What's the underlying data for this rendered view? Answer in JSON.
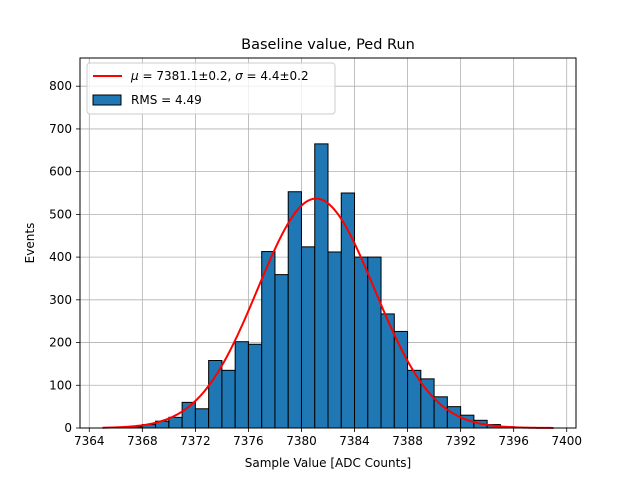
{
  "chart_data": {
    "type": "bar",
    "title": "Baseline value, Ped Run",
    "xlabel": "Sample Value [ADC Counts]",
    "ylabel": "Events",
    "xlim": [
      7363.3,
      7400.7
    ],
    "ylim": [
      0,
      866
    ],
    "xticks": [
      7364,
      7368,
      7372,
      7376,
      7380,
      7384,
      7388,
      7392,
      7396,
      7400
    ],
    "yticks": [
      0,
      100,
      200,
      300,
      400,
      500,
      600,
      700,
      800
    ],
    "grid": true,
    "legend_position": "upper-left",
    "histogram": {
      "name": "RMS = 4.49",
      "color": "#1f77b4",
      "edge_color": "#000000",
      "bin_width": 1,
      "bins": [
        {
          "x": 7364,
          "value": 0
        },
        {
          "x": 7365,
          "value": 0
        },
        {
          "x": 7366,
          "value": 0
        },
        {
          "x": 7367,
          "value": 3
        },
        {
          "x": 7368,
          "value": 8
        },
        {
          "x": 7369,
          "value": 16
        },
        {
          "x": 7370,
          "value": 25
        },
        {
          "x": 7371,
          "value": 60
        },
        {
          "x": 7372,
          "value": 45
        },
        {
          "x": 7373,
          "value": 158
        },
        {
          "x": 7374,
          "value": 135
        },
        {
          "x": 7375,
          "value": 202
        },
        {
          "x": 7376,
          "value": 196
        },
        {
          "x": 7377,
          "value": 413
        },
        {
          "x": 7378,
          "value": 359
        },
        {
          "x": 7379,
          "value": 553
        },
        {
          "x": 7380,
          "value": 424
        },
        {
          "x": 7381,
          "value": 665
        },
        {
          "x": 7382,
          "value": 412
        },
        {
          "x": 7383,
          "value": 550
        },
        {
          "x": 7384,
          "value": 400
        },
        {
          "x": 7385,
          "value": 400
        },
        {
          "x": 7386,
          "value": 267
        },
        {
          "x": 7387,
          "value": 226
        },
        {
          "x": 7388,
          "value": 135
        },
        {
          "x": 7389,
          "value": 115
        },
        {
          "x": 7390,
          "value": 73
        },
        {
          "x": 7391,
          "value": 50
        },
        {
          "x": 7392,
          "value": 30
        },
        {
          "x": 7393,
          "value": 18
        },
        {
          "x": 7394,
          "value": 8
        },
        {
          "x": 7395,
          "value": 3
        },
        {
          "x": 7396,
          "value": 1
        }
      ]
    },
    "fit": {
      "name": "μ = 7381.1±0.2, σ = 4.4±0.2",
      "name_parts": {
        "mu_symbol": "μ",
        "mu_text": " = 7381.1±0.2, ",
        "sigma_symbol": "σ",
        "sigma_text": " = 4.4±0.2"
      },
      "color": "#ff0000",
      "type": "gaussian",
      "mu": 7381.1,
      "sigma": 4.4,
      "amplitude": 537,
      "x_range": [
        7365,
        7399
      ]
    }
  }
}
